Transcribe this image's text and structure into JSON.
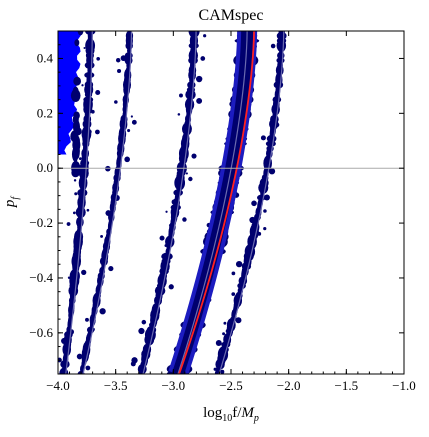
{
  "chart_data": {
    "type": "scatter",
    "title": "CAMspec",
    "xlabel": "log₁₀f/Mₚ",
    "xlabel_parts": {
      "base": "log",
      "sub": "10",
      "rest": "f/",
      "m": "M",
      "msub": "p"
    },
    "ylabel_parts": {
      "base": "p",
      "sub": "f"
    },
    "xlim": [
      -4.0,
      -1.0
    ],
    "ylim": [
      -0.75,
      0.5
    ],
    "xticks": [
      -4.0,
      -3.5,
      -3.0,
      -2.5,
      -2.0,
      -1.5,
      -1.0
    ],
    "xtick_labels": [
      "−4.0",
      "−3.5",
      "−3.0",
      "−2.5",
      "−2.0",
      "−1.5",
      "−1.0"
    ],
    "yticks": [
      -0.6,
      -0.4,
      -0.2,
      0.0,
      0.2,
      0.4
    ],
    "ytick_labels": [
      "−0.6",
      "−0.4",
      "−0.2",
      "0.0",
      "0.2",
      "0.4"
    ],
    "reference_line_y": 0.0,
    "colors": {
      "region": "#00006e",
      "core": "#0000ff",
      "fringe": "#1c1cc0",
      "best_fit": "#ff2020",
      "contour_line": "#6a6ab0",
      "reference_line": "#aaaaaa"
    },
    "bands": [
      {
        "name": "left blob",
        "x_at_top": -3.94,
        "x_at_bottom": -4.0
      },
      {
        "name": "band 1",
        "x_at_top": -3.72,
        "x_at_bottom": -3.95
      },
      {
        "name": "band 2",
        "x_at_top": -3.38,
        "x_at_bottom": -3.8
      },
      {
        "name": "band 3",
        "x_at_top": -2.82,
        "x_at_bottom": -3.28
      },
      {
        "name": "band 4 (main)",
        "x_at_top": -2.36,
        "x_at_bottom": -2.96
      },
      {
        "name": "band 5",
        "x_at_top": -2.06,
        "x_at_bottom": -2.62
      }
    ],
    "best_fit_curve": {
      "x_at_top": -2.3,
      "x_at_bottom": -2.95
    }
  }
}
